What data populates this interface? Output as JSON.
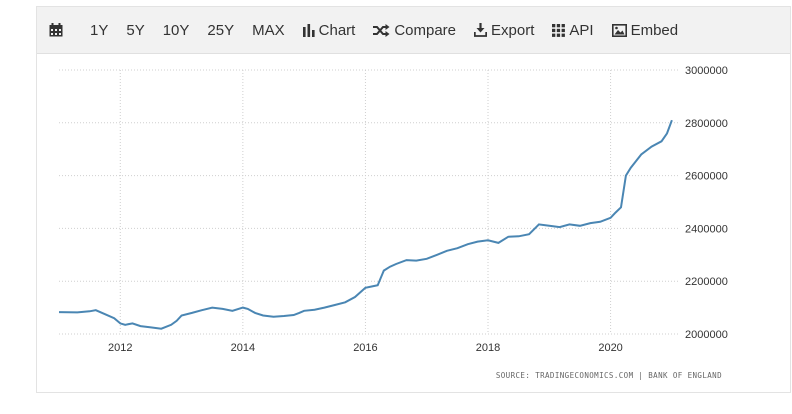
{
  "toolbar": {
    "range_1y": "1Y",
    "range_5y": "5Y",
    "range_10y": "10Y",
    "range_25y": "25Y",
    "range_max": "MAX",
    "chart": "Chart",
    "compare": "Compare",
    "export": "Export",
    "api": "API",
    "embed": "Embed"
  },
  "source": {
    "prefix": "SOURCE:",
    "site": "TRADINGECONOMICS.COM",
    "separator": "|",
    "org": "BANK OF ENGLAND"
  },
  "colors": {
    "line": "#4a86b3",
    "toolbar_bg": "#f2f2f2",
    "grid": "#cfcfcf"
  },
  "chart_data": {
    "type": "line",
    "xlabel": "",
    "ylabel": "",
    "xlim": [
      2011.0,
      2021.1
    ],
    "ylim": [
      2000000,
      3000000
    ],
    "x_ticks": [
      "2012",
      "2014",
      "2016",
      "2018",
      "2020"
    ],
    "y_ticks": [
      "2000000",
      "2200000",
      "2400000",
      "2600000",
      "2800000",
      "3000000"
    ],
    "y_axis_side": "right",
    "grid": true,
    "series": [
      {
        "x": [
          2011.0,
          2011.3,
          2011.5,
          2011.6,
          2011.75,
          2011.9,
          2012.0,
          2012.08,
          2012.2,
          2012.33,
          2012.5,
          2012.67,
          2012.83,
          2012.92,
          2013.0,
          2013.17,
          2013.33,
          2013.5,
          2013.67,
          2013.83,
          2014.0,
          2014.08,
          2014.2,
          2014.33,
          2014.5,
          2014.67,
          2014.75,
          2014.83,
          2014.92,
          2015.0,
          2015.17,
          2015.33,
          2015.5,
          2015.67,
          2015.83,
          2016.0,
          2016.1,
          2016.2,
          2016.3,
          2016.4,
          2016.5,
          2016.67,
          2016.83,
          2017.0,
          2017.17,
          2017.33,
          2017.5,
          2017.67,
          2017.83,
          2018.0,
          2018.17,
          2018.33,
          2018.5,
          2018.67,
          2018.83,
          2019.0,
          2019.17,
          2019.33,
          2019.5,
          2019.67,
          2019.83,
          2020.0,
          2020.08,
          2020.17,
          2020.25,
          2020.33,
          2020.5,
          2020.67,
          2020.83,
          2020.92,
          2021.0
        ],
        "values": [
          2083000,
          2082000,
          2086000,
          2090000,
          2075000,
          2060000,
          2040000,
          2035000,
          2040000,
          2030000,
          2025000,
          2020000,
          2035000,
          2050000,
          2070000,
          2080000,
          2090000,
          2100000,
          2095000,
          2088000,
          2100000,
          2095000,
          2080000,
          2070000,
          2065000,
          2068000,
          2070000,
          2072000,
          2080000,
          2088000,
          2092000,
          2100000,
          2110000,
          2120000,
          2140000,
          2175000,
          2180000,
          2185000,
          2240000,
          2255000,
          2265000,
          2280000,
          2278000,
          2285000,
          2300000,
          2315000,
          2325000,
          2340000,
          2350000,
          2355000,
          2345000,
          2368000,
          2370000,
          2378000,
          2415000,
          2410000,
          2405000,
          2415000,
          2410000,
          2420000,
          2425000,
          2440000,
          2460000,
          2480000,
          2600000,
          2630000,
          2680000,
          2710000,
          2730000,
          2760000,
          2810000
        ]
      }
    ]
  }
}
